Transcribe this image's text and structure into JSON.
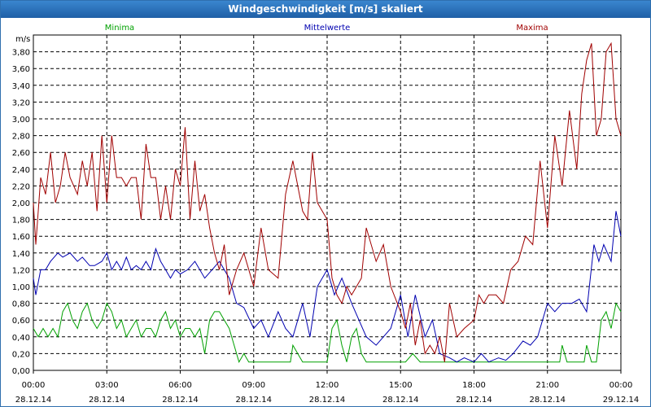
{
  "window": {
    "title": "Windgeschwindigkeit [m/s] skaliert"
  },
  "chart_data": {
    "type": "line",
    "title": "Windgeschwindigkeit [m/s] skaliert",
    "ylabel": "m/s",
    "xlabel": "",
    "ylim": [
      0,
      4.0
    ],
    "xlim_hours": [
      0,
      24
    ],
    "grid": true,
    "legend_placement": "top",
    "y_ticks": [
      "0,00",
      "0,20",
      "0,40",
      "0,60",
      "0,80",
      "1,00",
      "1,20",
      "1,40",
      "1,60",
      "1,80",
      "2,00",
      "2,20",
      "2,40",
      "2,60",
      "2,80",
      "3,00",
      "3,20",
      "3,40",
      "3,60",
      "3,80"
    ],
    "x_ticks": [
      {
        "time": "00:00",
        "date": "28.12.14"
      },
      {
        "time": "03:00",
        "date": "28.12.14"
      },
      {
        "time": "06:00",
        "date": "28.12.14"
      },
      {
        "time": "09:00",
        "date": "28.12.14"
      },
      {
        "time": "12:00",
        "date": "28.12.14"
      },
      {
        "time": "15:00",
        "date": "28.12.14"
      },
      {
        "time": "18:00",
        "date": "28.12.14"
      },
      {
        "time": "21:00",
        "date": "28.12.14"
      },
      {
        "time": "00:00",
        "date": "29.12.14"
      }
    ],
    "series": [
      {
        "name": "Minima",
        "color": "#00a000",
        "x_hours": [
          0.0,
          0.2,
          0.4,
          0.6,
          0.8,
          1.0,
          1.2,
          1.4,
          1.6,
          1.8,
          2.0,
          2.2,
          2.4,
          2.6,
          2.8,
          3.0,
          3.2,
          3.4,
          3.6,
          3.8,
          4.0,
          4.2,
          4.4,
          4.6,
          4.8,
          5.0,
          5.2,
          5.4,
          5.6,
          5.8,
          6.0,
          6.2,
          6.4,
          6.6,
          6.8,
          7.0,
          7.2,
          7.4,
          7.6,
          7.8,
          8.0,
          8.2,
          8.4,
          8.6,
          8.8,
          9.0,
          9.5,
          10.0,
          10.5,
          10.6,
          11.0,
          11.5,
          12.0,
          12.2,
          12.4,
          12.6,
          12.8,
          13.0,
          13.2,
          13.4,
          13.6,
          14.0,
          14.5,
          15.0,
          15.2,
          15.5,
          15.8,
          16.0,
          16.5,
          17.0,
          17.5,
          18.0,
          18.5,
          19.0,
          19.5,
          20.0,
          20.5,
          21.0,
          21.5,
          21.6,
          21.8,
          22.0,
          22.5,
          22.6,
          22.8,
          23.0,
          23.2,
          23.4,
          23.6,
          23.8,
          24.0
        ],
        "values": [
          0.5,
          0.4,
          0.5,
          0.4,
          0.5,
          0.4,
          0.7,
          0.8,
          0.6,
          0.5,
          0.7,
          0.8,
          0.6,
          0.5,
          0.6,
          0.8,
          0.7,
          0.5,
          0.6,
          0.4,
          0.5,
          0.6,
          0.4,
          0.5,
          0.5,
          0.4,
          0.6,
          0.7,
          0.5,
          0.6,
          0.4,
          0.5,
          0.5,
          0.4,
          0.5,
          0.2,
          0.6,
          0.7,
          0.7,
          0.6,
          0.5,
          0.3,
          0.1,
          0.2,
          0.1,
          0.1,
          0.1,
          0.1,
          0.1,
          0.3,
          0.1,
          0.1,
          0.1,
          0.5,
          0.6,
          0.3,
          0.1,
          0.4,
          0.5,
          0.2,
          0.1,
          0.1,
          0.1,
          0.1,
          0.1,
          0.2,
          0.1,
          0.1,
          0.1,
          0.1,
          0.1,
          0.1,
          0.1,
          0.1,
          0.1,
          0.1,
          0.1,
          0.1,
          0.1,
          0.3,
          0.1,
          0.1,
          0.1,
          0.3,
          0.1,
          0.1,
          0.6,
          0.7,
          0.5,
          0.8,
          0.7
        ]
      },
      {
        "name": "Mittelwerte",
        "color": "#0000b0",
        "x_hours": [
          0.0,
          0.1,
          0.3,
          0.5,
          0.7,
          1.0,
          1.2,
          1.5,
          1.8,
          2.0,
          2.3,
          2.5,
          2.8,
          3.0,
          3.2,
          3.4,
          3.6,
          3.8,
          4.0,
          4.2,
          4.4,
          4.6,
          4.8,
          5.0,
          5.2,
          5.4,
          5.6,
          5.8,
          6.0,
          6.3,
          6.6,
          7.0,
          7.3,
          7.6,
          8.0,
          8.3,
          8.6,
          9.0,
          9.3,
          9.6,
          10.0,
          10.3,
          10.6,
          11.0,
          11.3,
          11.6,
          12.0,
          12.3,
          12.6,
          13.0,
          13.3,
          13.6,
          14.0,
          14.3,
          14.6,
          15.0,
          15.3,
          15.6,
          16.0,
          16.3,
          16.6,
          17.0,
          17.3,
          17.6,
          18.0,
          18.3,
          18.6,
          19.0,
          19.3,
          19.6,
          20.0,
          20.3,
          20.6,
          21.0,
          21.3,
          21.6,
          22.0,
          22.3,
          22.6,
          22.9,
          23.1,
          23.3,
          23.6,
          23.8,
          24.0
        ],
        "values": [
          1.1,
          0.9,
          1.2,
          1.2,
          1.3,
          1.4,
          1.35,
          1.4,
          1.3,
          1.35,
          1.25,
          1.25,
          1.3,
          1.4,
          1.2,
          1.3,
          1.2,
          1.35,
          1.2,
          1.25,
          1.2,
          1.3,
          1.2,
          1.45,
          1.3,
          1.2,
          1.1,
          1.2,
          1.15,
          1.2,
          1.3,
          1.1,
          1.2,
          1.3,
          1.1,
          0.8,
          0.75,
          0.5,
          0.6,
          0.4,
          0.7,
          0.5,
          0.4,
          0.8,
          0.4,
          1.0,
          1.2,
          0.9,
          1.1,
          0.8,
          0.6,
          0.4,
          0.3,
          0.4,
          0.5,
          0.9,
          0.4,
          0.9,
          0.4,
          0.6,
          0.2,
          0.15,
          0.1,
          0.15,
          0.1,
          0.2,
          0.1,
          0.15,
          0.12,
          0.2,
          0.35,
          0.3,
          0.4,
          0.8,
          0.7,
          0.8,
          0.8,
          0.85,
          0.7,
          1.5,
          1.3,
          1.5,
          1.3,
          1.9,
          1.6
        ]
      },
      {
        "name": "Maxima",
        "color": "#a00000",
        "x_hours": [
          0.0,
          0.1,
          0.3,
          0.5,
          0.7,
          0.9,
          1.1,
          1.3,
          1.5,
          1.8,
          2.0,
          2.2,
          2.4,
          2.6,
          2.8,
          3.0,
          3.2,
          3.4,
          3.6,
          3.8,
          4.0,
          4.2,
          4.4,
          4.6,
          4.8,
          5.0,
          5.2,
          5.4,
          5.6,
          5.8,
          6.0,
          6.2,
          6.4,
          6.6,
          6.8,
          7.0,
          7.2,
          7.4,
          7.6,
          7.8,
          8.0,
          8.3,
          8.6,
          9.0,
          9.3,
          9.6,
          10.0,
          10.3,
          10.6,
          11.0,
          11.2,
          11.4,
          11.6,
          12.0,
          12.2,
          12.4,
          12.6,
          12.8,
          13.0,
          13.2,
          13.4,
          13.6,
          14.0,
          14.3,
          14.6,
          15.0,
          15.2,
          15.4,
          15.6,
          15.8,
          16.0,
          16.2,
          16.4,
          16.6,
          16.8,
          17.0,
          17.3,
          17.6,
          18.0,
          18.2,
          18.4,
          18.6,
          18.9,
          19.2,
          19.5,
          19.8,
          20.1,
          20.4,
          20.7,
          21.0,
          21.3,
          21.6,
          21.9,
          22.2,
          22.4,
          22.6,
          22.8,
          23.0,
          23.2,
          23.4,
          23.6,
          23.8,
          24.0
        ],
        "values": [
          2.0,
          1.5,
          2.3,
          2.1,
          2.6,
          2.0,
          2.2,
          2.6,
          2.3,
          2.1,
          2.5,
          2.2,
          2.6,
          1.9,
          2.8,
          2.0,
          2.8,
          2.3,
          2.3,
          2.2,
          2.3,
          2.3,
          1.8,
          2.7,
          2.3,
          2.3,
          1.8,
          2.2,
          1.8,
          2.4,
          2.2,
          2.9,
          1.8,
          2.5,
          1.9,
          2.1,
          1.7,
          1.4,
          1.2,
          1.5,
          0.9,
          1.2,
          1.4,
          1.0,
          1.7,
          1.2,
          1.1,
          2.1,
          2.5,
          1.9,
          1.8,
          2.6,
          2.0,
          1.8,
          1.1,
          0.9,
          0.8,
          1.0,
          0.9,
          1.0,
          1.1,
          1.7,
          1.3,
          1.5,
          1.0,
          0.7,
          0.5,
          0.8,
          0.3,
          0.6,
          0.2,
          0.3,
          0.2,
          0.4,
          0.1,
          0.8,
          0.4,
          0.5,
          0.6,
          0.9,
          0.8,
          0.9,
          0.9,
          0.8,
          1.2,
          1.3,
          1.6,
          1.5,
          2.5,
          1.7,
          2.8,
          2.2,
          3.1,
          2.4,
          3.3,
          3.7,
          3.9,
          2.8,
          3.0,
          3.8,
          3.9,
          3.0,
          2.8
        ]
      }
    ]
  }
}
